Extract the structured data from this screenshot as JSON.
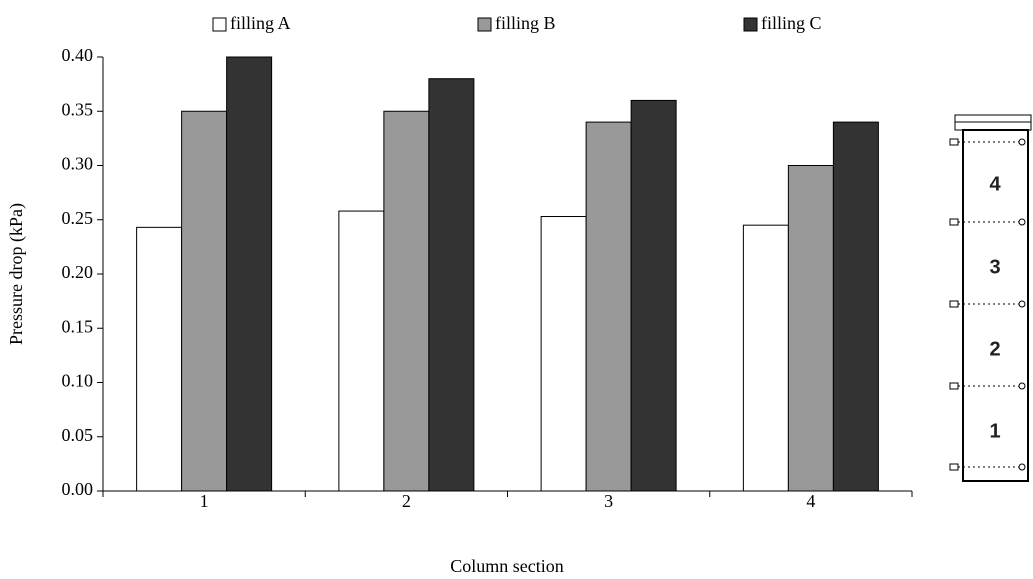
{
  "chart_data": {
    "type": "bar",
    "categories": [
      "1",
      "2",
      "3",
      "4"
    ],
    "series": [
      {
        "name": "filling A",
        "color": "#ffffff",
        "values": [
          0.243,
          0.258,
          0.253,
          0.245
        ]
      },
      {
        "name": "filling B",
        "color": "#999999",
        "values": [
          0.35,
          0.35,
          0.34,
          0.3
        ]
      },
      {
        "name": "filling C",
        "color": "#333333",
        "values": [
          0.4,
          0.38,
          0.36,
          0.34
        ]
      }
    ],
    "y_label": "Pressure drop (kPa)",
    "x_label": "Column section",
    "ylim": [
      0,
      0.4
    ],
    "yticks": [
      {
        "value": 0,
        "label": "0.00"
      },
      0.05,
      {
        "value": 0.1,
        "label": "0.10"
      },
      0.15,
      {
        "value": 0.2,
        "label": "0.20"
      },
      0.25,
      {
        "value": 0.3,
        "label": "0.30"
      },
      0.35,
      {
        "value": 0.4,
        "label": "0.40"
      }
    ],
    "grid": false,
    "legend": "top"
  },
  "diagram": {
    "sections": [
      "4",
      "3",
      "2",
      "1"
    ]
  }
}
